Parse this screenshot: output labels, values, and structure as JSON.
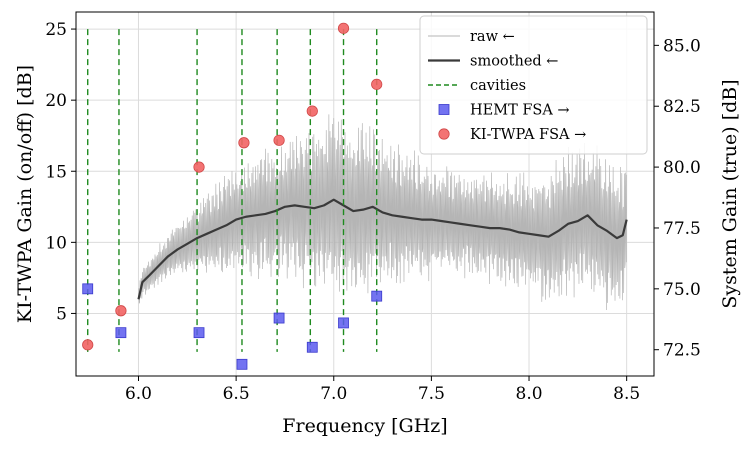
{
  "chart_data": {
    "type": "line",
    "xlabel": "Frequency [GHz]",
    "ylabel": "KI-TWPA Gain (on/off) [dB]",
    "y2label": "System Gain (true) [dB]",
    "xlim": [
      5.68,
      8.64
    ],
    "ylim": [
      0.6,
      26.2
    ],
    "y2lim": [
      71.42,
      86.37
    ],
    "x_ticks": [
      {
        "value": 6.0,
        "label": "6.0"
      },
      {
        "value": 6.5,
        "label": "6.5"
      },
      {
        "value": 7.0,
        "label": "7.0"
      },
      {
        "value": 7.5,
        "label": "7.5"
      },
      {
        "value": 8.0,
        "label": "8.0"
      },
      {
        "value": 8.5,
        "label": "8.5"
      }
    ],
    "y_ticks": [
      {
        "value": 5,
        "label": "5"
      },
      {
        "value": 10,
        "label": "10"
      },
      {
        "value": 15,
        "label": "15"
      },
      {
        "value": 20,
        "label": "20"
      },
      {
        "value": 25,
        "label": "25"
      }
    ],
    "y2_ticks": [
      {
        "value": 72.5,
        "label": "72.5"
      },
      {
        "value": 75.0,
        "label": "75.0"
      },
      {
        "value": 77.5,
        "label": "77.5"
      },
      {
        "value": 80.0,
        "label": "80.0"
      },
      {
        "value": 82.5,
        "label": "82.5"
      },
      {
        "value": 85.0,
        "label": "85.0"
      }
    ],
    "grid": true,
    "legend_position": "top-right",
    "series": [
      {
        "name": "raw ←",
        "kind": "line",
        "axis": "left",
        "color": "#b5b5b5",
        "description": "noisy raw gain trace oscillating around the smoothed curve, amplitude up to about ±7 dB near 7.0 GHz",
        "envelope": {
          "x": [
            6.0,
            6.2,
            6.4,
            6.6,
            6.8,
            7.0,
            7.2,
            7.4,
            7.6,
            7.8,
            8.0,
            8.2,
            8.4,
            8.5
          ],
          "amplitude": [
            1.0,
            2.0,
            3.5,
            4.5,
            5.5,
            7.0,
            6.0,
            5.0,
            4.0,
            4.0,
            4.5,
            5.5,
            6.0,
            5.0
          ]
        }
      },
      {
        "name": "smoothed ←",
        "kind": "line",
        "axis": "left",
        "color": "#3a3a3a",
        "x": [
          6.0,
          6.02,
          6.05,
          6.1,
          6.15,
          6.2,
          6.25,
          6.3,
          6.35,
          6.4,
          6.45,
          6.5,
          6.55,
          6.6,
          6.65,
          6.7,
          6.75,
          6.8,
          6.85,
          6.9,
          6.95,
          7.0,
          7.05,
          7.1,
          7.15,
          7.2,
          7.25,
          7.3,
          7.35,
          7.4,
          7.45,
          7.5,
          7.55,
          7.6,
          7.65,
          7.7,
          7.75,
          7.8,
          7.85,
          7.9,
          7.95,
          8.0,
          8.05,
          8.1,
          8.15,
          8.2,
          8.25,
          8.3,
          8.35,
          8.4,
          8.45,
          8.48,
          8.5
        ],
        "y": [
          6.0,
          7.2,
          7.6,
          8.3,
          9.0,
          9.5,
          9.9,
          10.3,
          10.6,
          10.9,
          11.2,
          11.6,
          11.8,
          11.9,
          12.0,
          12.2,
          12.5,
          12.6,
          12.5,
          12.4,
          12.6,
          13.0,
          12.6,
          12.2,
          12.3,
          12.5,
          12.1,
          11.9,
          11.8,
          11.7,
          11.6,
          11.6,
          11.5,
          11.4,
          11.3,
          11.2,
          11.1,
          11.0,
          11.0,
          10.9,
          10.7,
          10.6,
          10.5,
          10.4,
          10.8,
          11.3,
          11.5,
          11.9,
          11.2,
          10.8,
          10.3,
          10.5,
          11.6
        ]
      },
      {
        "name": "cavities",
        "kind": "vlines",
        "axis": "left",
        "color": "#1f8a1f",
        "x": [
          5.74,
          5.9,
          6.3,
          6.53,
          6.71,
          6.88,
          7.05,
          7.22
        ],
        "y_range": [
          2.3,
          25.0
        ]
      },
      {
        "name": "HEMT FSA →",
        "kind": "scatter",
        "axis": "right",
        "marker": "square",
        "color": "#5a5aee",
        "x": [
          5.74,
          5.91,
          6.31,
          6.53,
          6.72,
          6.89,
          7.05,
          7.22
        ],
        "y": [
          75.0,
          73.2,
          73.2,
          71.9,
          73.8,
          72.6,
          73.6,
          74.7
        ]
      },
      {
        "name": "KI-TWPA FSA →",
        "kind": "scatter",
        "axis": "right",
        "marker": "circle",
        "color": "#f26464",
        "x": [
          5.74,
          5.91,
          6.31,
          6.54,
          6.72,
          6.89,
          7.05,
          7.22
        ],
        "y": [
          72.7,
          74.1,
          80.0,
          81.0,
          81.1,
          82.3,
          85.7,
          83.4
        ]
      }
    ]
  }
}
